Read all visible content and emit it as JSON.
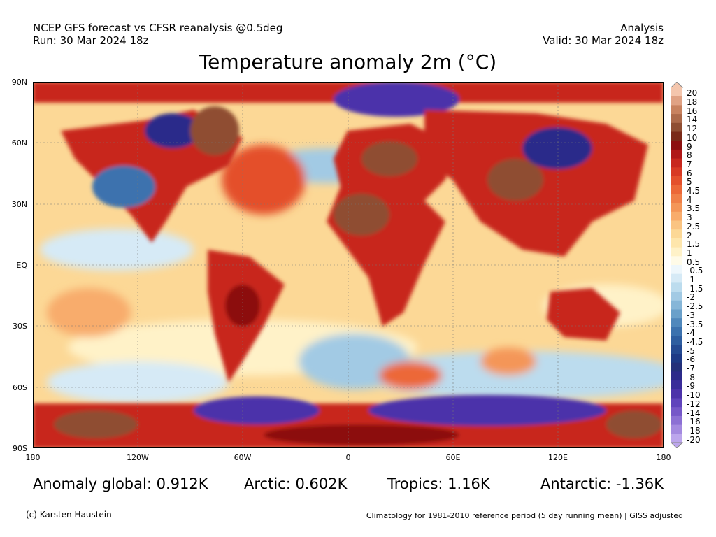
{
  "header": {
    "source_line": "NCEP GFS forecast vs CFSR reanalysis @0.5deg",
    "run_line": "Run: 30 Mar 2024 18z",
    "kind": "Analysis",
    "valid_line": "Valid: 30 Mar 2024 18z"
  },
  "title": "Temperature anomaly 2m (°C)",
  "axes": {
    "lat_labels": [
      "90N",
      "60N",
      "30N",
      "EQ",
      "30S",
      "60S",
      "90S"
    ],
    "lon_labels": [
      "180",
      "120W",
      "60W",
      "0",
      "60E",
      "120E",
      "180"
    ]
  },
  "stats": {
    "global": "Anomaly global: 0.912K",
    "arctic": "Arctic: 0.602K",
    "tropics": "Tropics: 1.16K",
    "antarctic": "Antarctic: -1.36K"
  },
  "footer": {
    "credit": "(c) Karsten Haustein",
    "note": "Climatology for 1981-2010 reference period (5 day running mean) | GISS adjusted"
  },
  "colorbar": {
    "labels": [
      "20",
      "18",
      "16",
      "14",
      "12",
      "10",
      "9",
      "8",
      "7",
      "6",
      "5",
      "4.5",
      "4",
      "3.5",
      "3",
      "2.5",
      "2",
      "1.5",
      "1",
      "0.5",
      "-0.5",
      "-1",
      "-1.5",
      "-2",
      "-2.5",
      "-3",
      "-3.5",
      "-4",
      "-4.5",
      "-5",
      "-6",
      "-7",
      "-8",
      "-9",
      "-10",
      "-12",
      "-14",
      "-16",
      "-18",
      "-20"
    ],
    "colors": [
      "#f4c6ad",
      "#e0a284",
      "#c8825f",
      "#ad6a4a",
      "#8f4e32",
      "#7a2a18",
      "#8c1010",
      "#b01818",
      "#c8281e",
      "#d83a24",
      "#e4502c",
      "#ec6838",
      "#f08048",
      "#f49658",
      "#f8ac6c",
      "#fac482",
      "#fcd896",
      "#fee6ac",
      "#fff2c8",
      "#fffbe8",
      "#eef7fc",
      "#d6eaf6",
      "#bcdcee",
      "#a2cae4",
      "#86b6d8",
      "#6aa0ca",
      "#5088bc",
      "#3c72ae",
      "#2e5ea0",
      "#244a92",
      "#1e3a86",
      "#24307a",
      "#2c2a8a",
      "#3a2c9a",
      "#4c32aa",
      "#6044bc",
      "#7658c8",
      "#8c70d4",
      "#a48ae0",
      "#bca6ec"
    ]
  },
  "map_colors": {
    "ocean_warm": "#fcd896",
    "ocean_pale": "#fff2c8",
    "cold": "#3c72ae",
    "very_cold": "#4c32aa",
    "hot": "#c8281e",
    "very_hot": "#8f4e32"
  }
}
